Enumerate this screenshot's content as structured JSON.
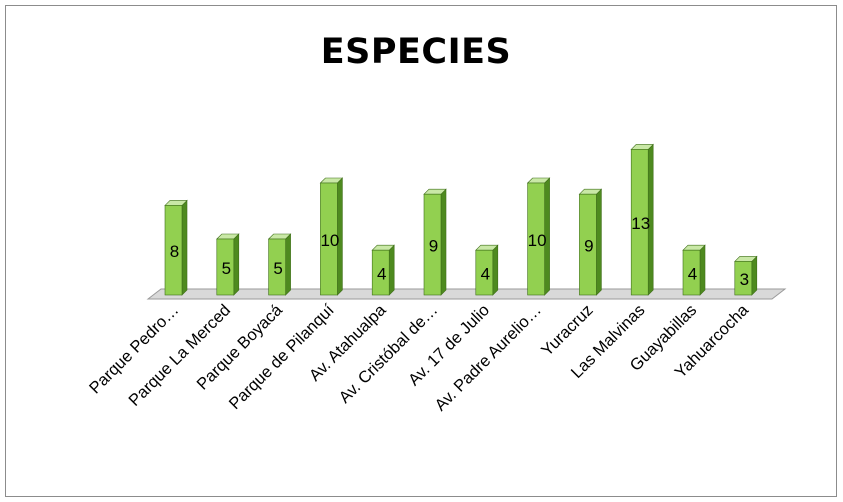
{
  "chart_data": {
    "type": "bar",
    "title": "ESPECIES",
    "categories": [
      "Parque Pedro…",
      "Parque La Merced",
      "Parque Boyacá",
      "Parque de Pilanquí",
      "Av. Atahualpa",
      "Av. Cristóbal de…",
      "Av. 17 de Julio",
      "Av. Padre Aurelio…",
      "Yuracruz",
      "Las Malvinas",
      "Guayabillas",
      "Yahuarcocha"
    ],
    "values": [
      8,
      5,
      5,
      10,
      4,
      9,
      4,
      10,
      9,
      13,
      4,
      3
    ],
    "xlabel": "",
    "ylabel": "",
    "ylim": [
      0,
      14
    ],
    "grid": false,
    "legend": "none",
    "data_labels": true,
    "colors": {
      "bar_front": "#92d050",
      "bar_side": "#4e8a1f",
      "bar_top": "#c9e8a6",
      "bar_outline": "#3f6f19",
      "floor": "#d9d9d9",
      "floor_outline": "#9a9a9a"
    }
  }
}
